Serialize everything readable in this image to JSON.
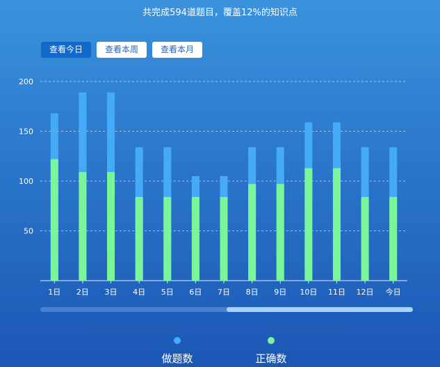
{
  "summary": "共完成594道题目，覆盖12%的知识点",
  "tabs": [
    {
      "label": "查看今日",
      "active": true
    },
    {
      "label": "查看本周",
      "active": false
    },
    {
      "label": "查看本月",
      "active": false
    }
  ],
  "colors": {
    "done": "#45aaf8",
    "correct": "#7bf59a"
  },
  "legend": [
    {
      "label": "做题数",
      "color": "#45aaf8"
    },
    {
      "label": "正确数",
      "color": "#7bf59a"
    }
  ],
  "chart_data": {
    "type": "bar",
    "stacked": "overlay",
    "categories": [
      "1日",
      "2日",
      "3日",
      "4日",
      "5日",
      "6日",
      "7日",
      "8日",
      "9日",
      "10日",
      "11日",
      "12日",
      "今日"
    ],
    "series": [
      {
        "name": "做题数",
        "values": [
          168,
          189,
          189,
          134,
          134,
          105,
          105,
          134,
          134,
          159,
          159,
          134,
          134
        ]
      },
      {
        "name": "正确数",
        "values": [
          122,
          109,
          109,
          84,
          84,
          84,
          84,
          97,
          97,
          113,
          113,
          84,
          84
        ]
      }
    ],
    "yticks": [
      50,
      100,
      150,
      200
    ],
    "ylim": [
      0,
      200
    ],
    "grid": true,
    "legend_position": "bottom"
  }
}
